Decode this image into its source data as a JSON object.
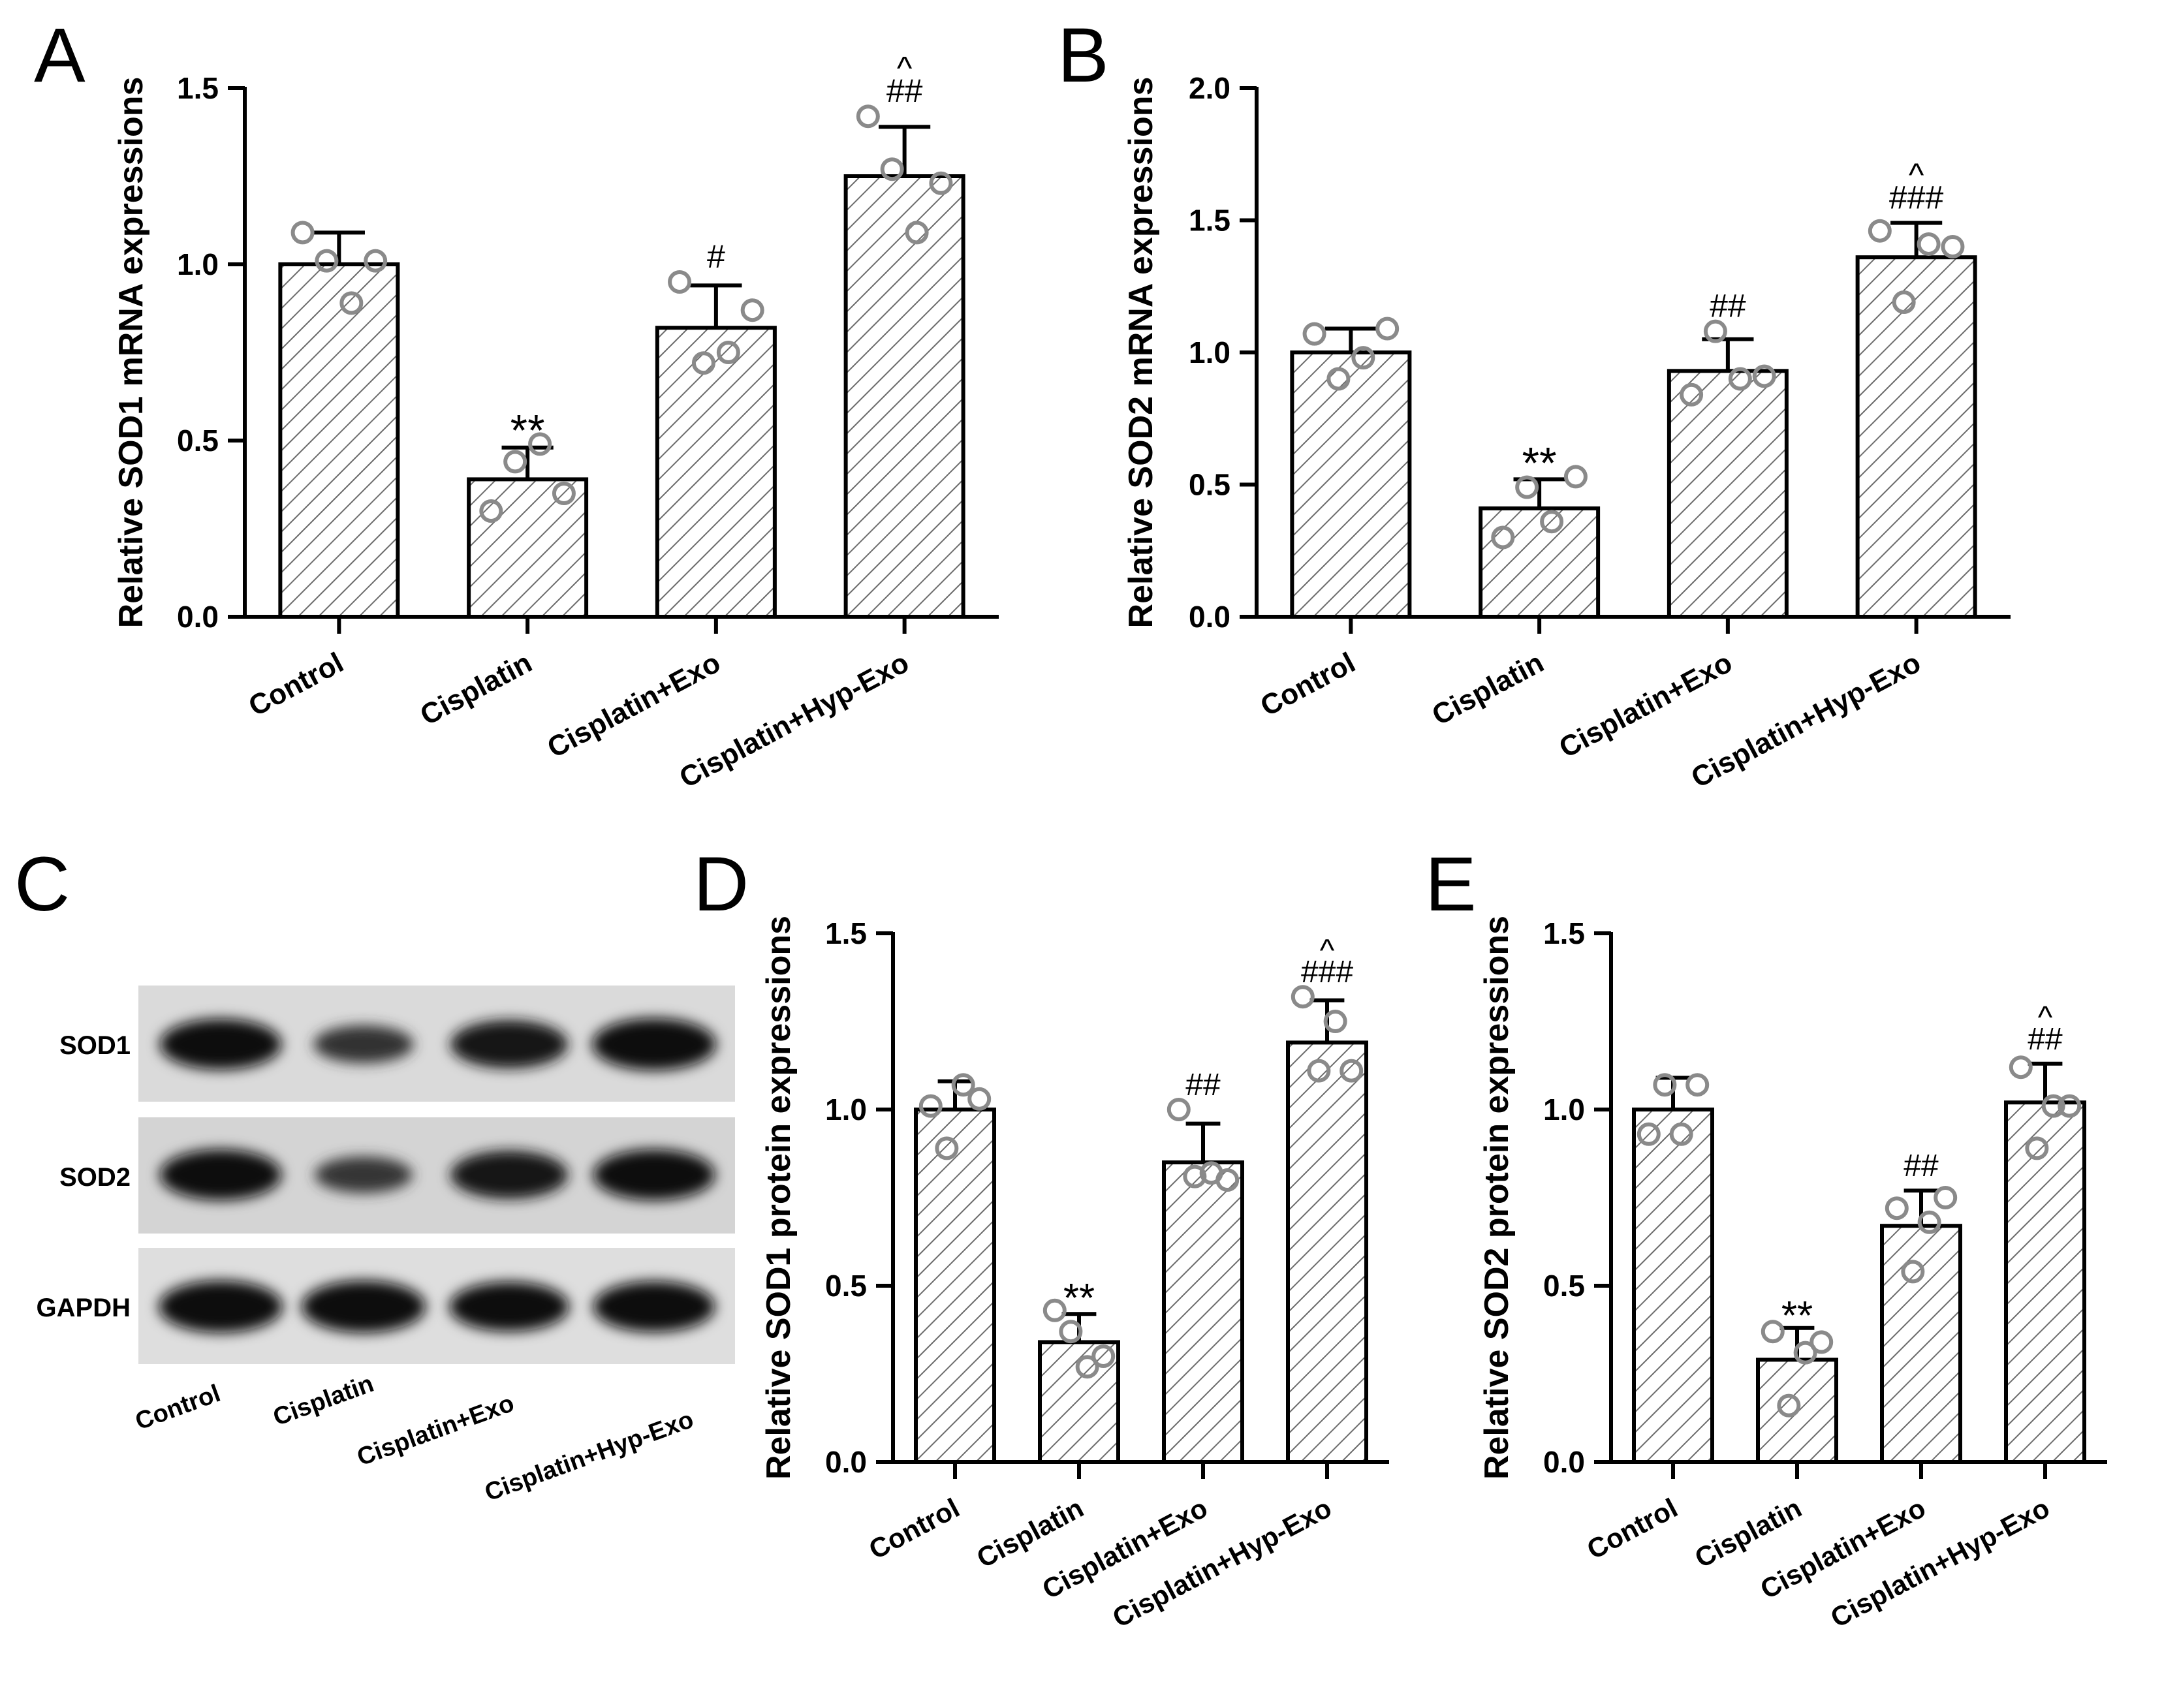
{
  "chart_data": [
    {
      "panel": "A",
      "type": "bar",
      "ylabel": "Relative SOD1 mRNA expressions",
      "ylim": [
        0,
        1.5
      ],
      "yticks": [
        "0.0",
        "0.5",
        "1.0",
        "1.5"
      ],
      "categories": [
        "Control",
        "Cisplatin",
        "Cisplatin+Exo",
        "Cisplatin+Hyp-Exo"
      ],
      "values": [
        1.0,
        0.39,
        0.82,
        1.25
      ],
      "errors": [
        0.09,
        0.09,
        0.12,
        0.14
      ],
      "points": [
        [
          1.09,
          1.01,
          0.89,
          1.01
        ],
        [
          0.3,
          0.44,
          0.49,
          0.35
        ],
        [
          0.95,
          0.72,
          0.75,
          0.87
        ],
        [
          1.42,
          1.27,
          1.09,
          1.23
        ]
      ],
      "annotations": [
        "",
        "**",
        "#",
        "##"
      ],
      "annotations_top": [
        "",
        "",
        "",
        "^"
      ]
    },
    {
      "panel": "B",
      "type": "bar",
      "ylabel": "Relative SOD2 mRNA expressions",
      "ylim": [
        0,
        2.0
      ],
      "yticks": [
        "0.0",
        "0.5",
        "1.0",
        "1.5",
        "2.0"
      ],
      "categories": [
        "Control",
        "Cisplatin",
        "Cisplatin+Exo",
        "Cisplatin+Hyp-Exo"
      ],
      "values": [
        1.0,
        0.41,
        0.93,
        1.36
      ],
      "errors": [
        0.09,
        0.11,
        0.12,
        0.13
      ],
      "points": [
        [
          1.07,
          0.9,
          0.98,
          1.09
        ],
        [
          0.3,
          0.49,
          0.36,
          0.53
        ],
        [
          0.84,
          1.08,
          0.9,
          0.91
        ],
        [
          1.46,
          1.19,
          1.41,
          1.4
        ]
      ],
      "annotations": [
        "",
        "**",
        "##",
        "###"
      ],
      "annotations_top": [
        "",
        "",
        "",
        "^"
      ]
    },
    {
      "panel": "D",
      "type": "bar",
      "ylabel": "Relative SOD1 protein expressions",
      "ylim": [
        0,
        1.5
      ],
      "yticks": [
        "0.0",
        "0.5",
        "1.0",
        "1.5"
      ],
      "categories": [
        "Control",
        "Cisplatin",
        "Cisplatin+Exo",
        "Cisplatin+Hyp-Exo"
      ],
      "values": [
        1.0,
        0.34,
        0.85,
        1.19
      ],
      "errors": [
        0.08,
        0.08,
        0.11,
        0.12
      ],
      "points": [
        [
          1.01,
          0.89,
          1.07,
          1.03
        ],
        [
          0.43,
          0.37,
          0.27,
          0.3
        ],
        [
          1.0,
          0.81,
          0.82,
          0.8
        ],
        [
          1.32,
          1.11,
          1.25,
          1.11
        ]
      ],
      "annotations": [
        "",
        "**",
        "##",
        "###"
      ],
      "annotations_top": [
        "",
        "",
        "",
        "^"
      ]
    },
    {
      "panel": "E",
      "type": "bar",
      "ylabel": "Relative SOD2 protein expressions",
      "ylim": [
        0,
        1.5
      ],
      "yticks": [
        "0.0",
        "0.5",
        "1.0",
        "1.5"
      ],
      "categories": [
        "Control",
        "Cisplatin",
        "Cisplatin+Exo",
        "Cisplatin+Hyp-Exo"
      ],
      "values": [
        1.0,
        0.29,
        0.67,
        1.02
      ],
      "errors": [
        0.09,
        0.09,
        0.1,
        0.11
      ],
      "points": [
        [
          0.93,
          1.07,
          0.93,
          1.07
        ],
        [
          0.37,
          0.16,
          0.31,
          0.34
        ],
        [
          0.72,
          0.54,
          0.68,
          0.75
        ],
        [
          1.12,
          0.89,
          1.01,
          1.01
        ]
      ],
      "annotations": [
        "",
        "**",
        "##",
        "##"
      ],
      "annotations_top": [
        "",
        "",
        "",
        "^"
      ]
    }
  ],
  "panel_letters": [
    "A",
    "B",
    "C",
    "D",
    "E"
  ],
  "blot": {
    "rows": [
      "SOD1",
      "SOD2",
      "GAPDH"
    ],
    "lanes": [
      "Control",
      "Cisplatin",
      "Cisplatin+Exo",
      "Cisplatin+Hyp-Exo"
    ],
    "band_intensity": [
      [
        0.95,
        0.45,
        0.85,
        1.0
      ],
      [
        0.95,
        0.4,
        0.85,
        0.95
      ],
      [
        1.0,
        1.0,
        0.9,
        0.95
      ]
    ]
  },
  "colors": {
    "bar_hatch": "#6b6b6b",
    "point_stroke": "#8a8a8a",
    "axis": "#000000"
  }
}
